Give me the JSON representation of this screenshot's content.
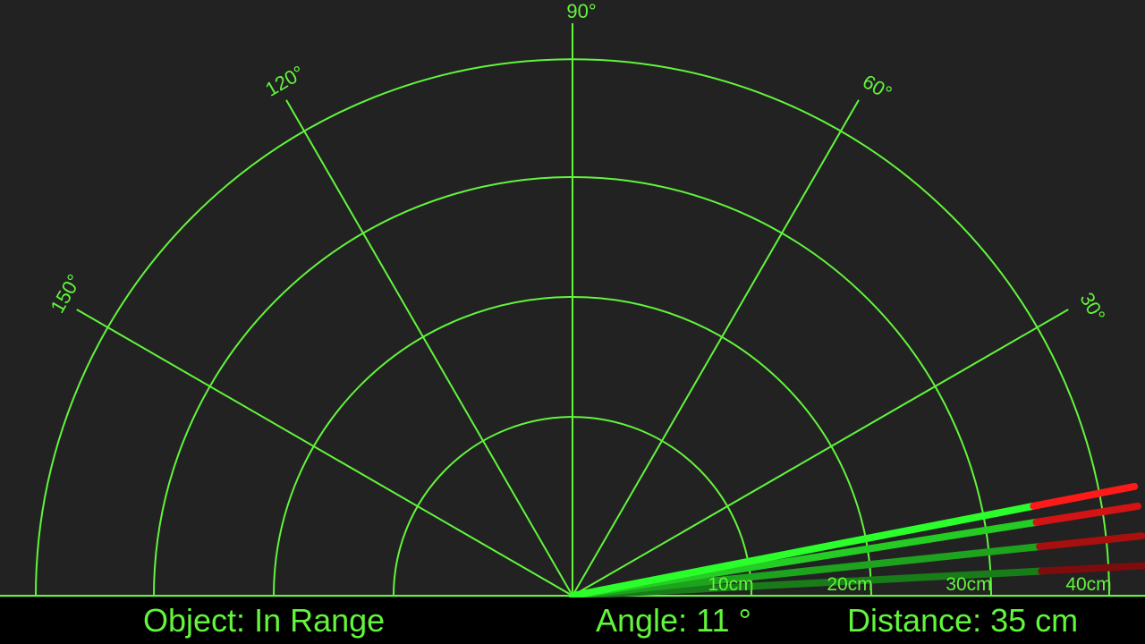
{
  "colors": {
    "background": "#222222",
    "grid": "#62f53c",
    "sweep": "#2bff2b",
    "object": "#ff1a1a",
    "bottom_bar": "#000000",
    "text": "#62f53c"
  },
  "radar": {
    "angle_labels": [
      "30°",
      "60°",
      "90°",
      "120°",
      "150°"
    ],
    "distance_labels": [
      "10cm",
      "20cm",
      "30cm",
      "40cm"
    ]
  },
  "status": {
    "object_label": "Object:",
    "object_value": "In Range",
    "angle_label": "Angle:",
    "angle_value": "11",
    "angle_unit": "°",
    "distance_label": "Distance:",
    "distance_value": "35",
    "distance_unit": "cm"
  },
  "sweep": {
    "current_angle_deg": 11,
    "trail_angles_deg": [
      11,
      9,
      6,
      3
    ],
    "object_distance_cm": 35,
    "max_distance_cm": 40
  }
}
